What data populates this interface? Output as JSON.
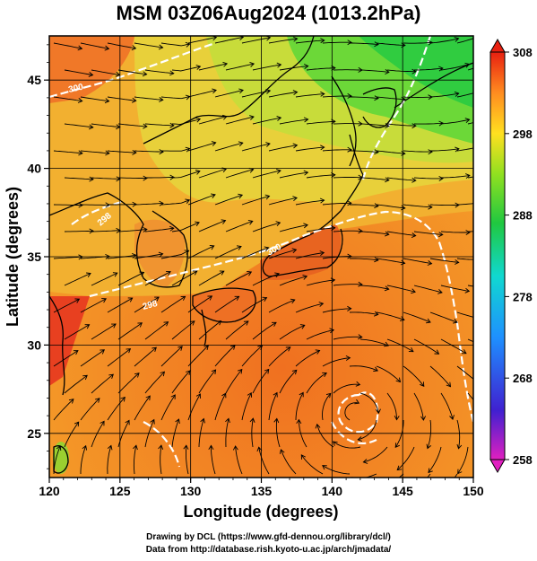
{
  "title": "MSM 03Z06Aug2024 (1013.2hPa)",
  "x_axis": {
    "label": "Longitude (degrees)",
    "range": [
      120,
      150
    ],
    "ticks": [
      "120",
      "125",
      "130",
      "135",
      "140",
      "145",
      "150"
    ]
  },
  "y_axis": {
    "label": "Latitude  (degrees)",
    "range": [
      22.5,
      47.5
    ],
    "ticks": [
      "25",
      "30",
      "35",
      "40",
      "45"
    ]
  },
  "colorbar": {
    "range": [
      258,
      308
    ],
    "ticks": [
      "308",
      "298",
      "288",
      "278",
      "268",
      "258"
    ]
  },
  "contour_labels": [
    "300",
    "298",
    "300",
    "298"
  ],
  "credits": [
    "Drawing by DCL (https://www.gfd-dennou.org/library/dcl/)",
    "Data from http://database.rish.kyoto-u.ac.jp/arch/jmadata/"
  ]
}
